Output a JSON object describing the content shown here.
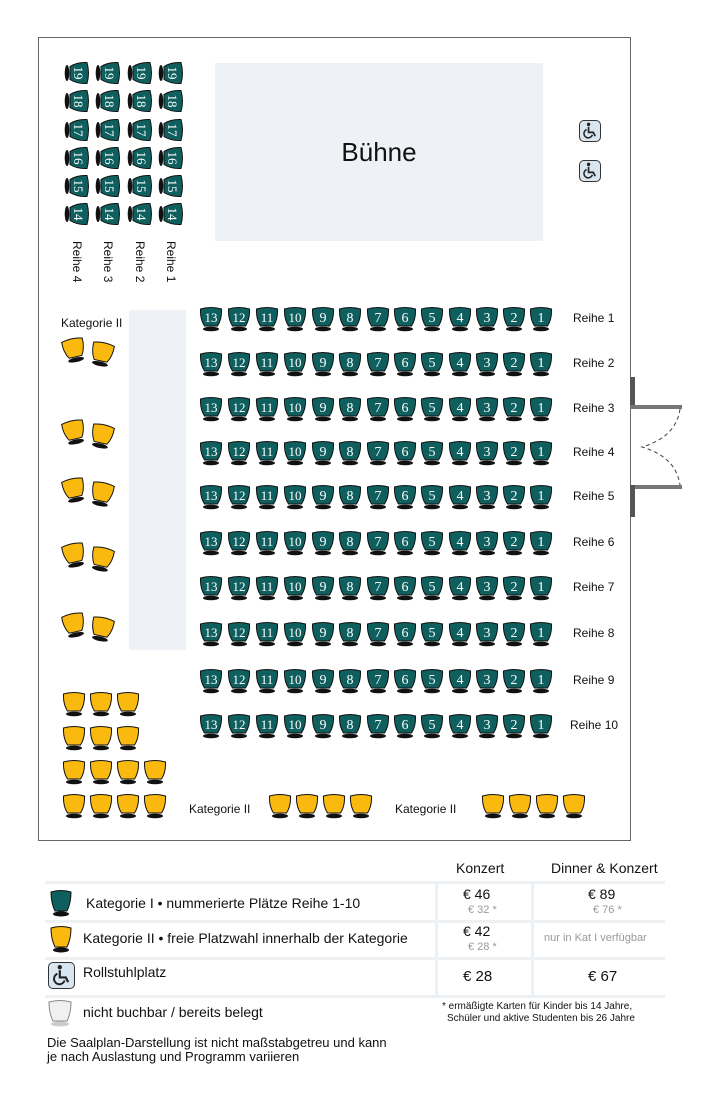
{
  "stage_label": "Bühne",
  "colors": {
    "kat1": "#0e5f5e",
    "kat2": "#f9b90f",
    "unavailable": "#e8e8e8",
    "stage": "#eef1f5"
  },
  "main_rows": [
    {
      "label": "Reihe 1",
      "seats": [
        13,
        12,
        11,
        10,
        9,
        8,
        7,
        6,
        5,
        4,
        3,
        2,
        1
      ]
    },
    {
      "label": "Reihe 2",
      "seats": [
        13,
        12,
        11,
        10,
        9,
        8,
        7,
        6,
        5,
        4,
        3,
        2,
        1
      ]
    },
    {
      "label": "Reihe 3",
      "seats": [
        13,
        12,
        11,
        10,
        9,
        8,
        7,
        6,
        5,
        4,
        3,
        2,
        1
      ]
    },
    {
      "label": "Reihe 4",
      "seats": [
        13,
        12,
        11,
        10,
        9,
        8,
        7,
        6,
        5,
        4,
        3,
        2,
        1
      ]
    },
    {
      "label": "Reihe 5",
      "seats": [
        13,
        12,
        11,
        10,
        9,
        8,
        7,
        6,
        5,
        4,
        3,
        2,
        1
      ]
    },
    {
      "label": "Reihe 6",
      "seats": [
        13,
        12,
        11,
        10,
        9,
        8,
        7,
        6,
        5,
        4,
        3,
        2,
        1
      ]
    },
    {
      "label": "Reihe 7",
      "seats": [
        13,
        12,
        11,
        10,
        9,
        8,
        7,
        6,
        5,
        4,
        3,
        2,
        1
      ]
    },
    {
      "label": "Reihe 8",
      "seats": [
        13,
        12,
        11,
        10,
        9,
        8,
        7,
        6,
        5,
        4,
        3,
        2,
        1
      ]
    },
    {
      "label": "Reihe 9",
      "seats": [
        13,
        12,
        11,
        10,
        9,
        8,
        7,
        6,
        5,
        4,
        3,
        2,
        1
      ]
    },
    {
      "label": "Reihe 10",
      "seats": [
        13,
        12,
        11,
        10,
        9,
        8,
        7,
        6,
        5,
        4,
        3,
        2,
        1
      ]
    }
  ],
  "side_rows": [
    {
      "label": "Reihe 4",
      "seats": [
        19,
        18,
        17,
        16,
        15,
        14
      ]
    },
    {
      "label": "Reihe 3",
      "seats": [
        19,
        18,
        17,
        16,
        15,
        14
      ]
    },
    {
      "label": "Reihe 2",
      "seats": [
        19,
        18,
        17,
        16,
        15,
        14
      ]
    },
    {
      "label": "Reihe 1",
      "seats": [
        19,
        18,
        17,
        16,
        15,
        14
      ]
    }
  ],
  "kat2_labels": [
    "Kategorie II",
    "Kategorie II",
    "Kategorie II"
  ],
  "wheelchair_icon": "wheelchair-icon",
  "legend": {
    "headers": [
      "Konzert",
      "Dinner & Konzert"
    ],
    "rows": [
      {
        "icon": "seat-kat1-icon",
        "label": "Kategorie I • nummerierte Plätze Reihe 1-10",
        "konzert": "€ 46",
        "konzert_reduced": "€ 32 *",
        "dinner": "€ 89",
        "dinner_reduced": "€ 76 *"
      },
      {
        "icon": "seat-kat2-icon",
        "label": "Kategorie II • freie Platzwahl innerhalb der Kategorie",
        "konzert": "€ 42",
        "konzert_reduced": "€ 28 *",
        "dinner": "nur in Kat I verfügbar"
      },
      {
        "icon": "wheelchair-icon",
        "label": "Rollstuhlplatz",
        "konzert": "€ 28",
        "dinner": "€ 67"
      },
      {
        "icon": "seat-unavailable-icon",
        "label": "nicht buchbar / bereits belegt"
      }
    ],
    "footnote_1": "* ermäßigte Karten für Kinder bis 14 Jahre,",
    "footnote_2": "Schüler und aktive Studenten bis 26 Jahre",
    "disclaimer_1": "Die Saalplan-Darstellung ist nicht maßstabgetreu und kann",
    "disclaimer_2": "je nach Auslastung und Programm variieren"
  }
}
